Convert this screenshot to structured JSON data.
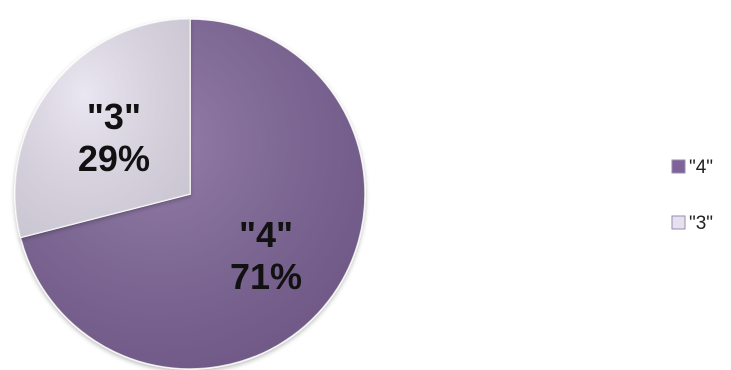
{
  "chart_data": {
    "type": "pie",
    "title": "",
    "slices": [
      {
        "label": "\"4\"",
        "value": 71,
        "display": "71%",
        "color": "#7d6397"
      },
      {
        "label": "\"3\"",
        "value": 29,
        "display": "29%",
        "color": "#e6e1ef"
      }
    ],
    "start_angle_deg": 0,
    "direction": "clockwise",
    "legend_position": "right"
  }
}
